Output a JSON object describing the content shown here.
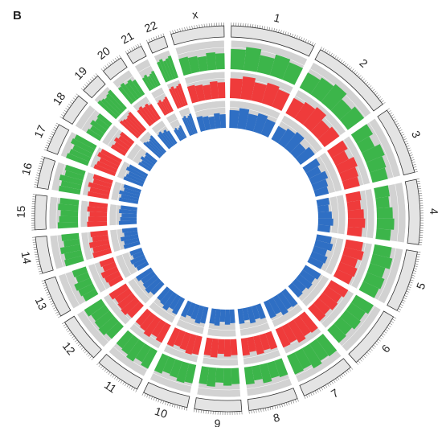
{
  "chart_data": {
    "type": "circular-histogram",
    "panel_label": "B",
    "categories": [
      "1",
      "2",
      "3",
      "4",
      "5",
      "6",
      "7",
      "8",
      "9",
      "10",
      "11",
      "12",
      "13",
      "14",
      "15",
      "16",
      "17",
      "18",
      "19",
      "20",
      "21",
      "22",
      "x"
    ],
    "lengths": [
      249,
      242,
      198,
      190,
      181,
      171,
      159,
      145,
      138,
      134,
      135,
      133,
      114,
      107,
      102,
      90,
      83,
      80,
      59,
      64,
      47,
      51,
      156
    ],
    "ylim": [
      0,
      1
    ],
    "yticks": [
      0,
      0.25,
      0.5,
      0.75,
      1
    ],
    "grid": true,
    "series": [
      {
        "color": "#3cb54a",
        "values": [
          [
            0.7,
            0.8,
            0.6,
            0.75,
            0.65
          ],
          [
            0.6,
            0.7,
            0.8,
            0.55,
            0.7
          ],
          [
            0.65,
            0.5,
            0.7,
            0.6,
            0.55
          ],
          [
            0.5,
            0.45,
            0.55,
            0.6,
            0.5
          ],
          [
            0.6,
            0.7,
            0.55,
            0.65,
            0.6
          ],
          [
            0.7,
            0.6,
            0.65,
            0.55,
            0.6
          ],
          [
            0.75,
            0.7,
            0.8,
            0.65,
            0.7
          ],
          [
            0.6,
            0.55,
            0.65,
            0.5,
            0.6
          ],
          [
            0.55,
            0.6,
            0.5,
            0.65,
            0.6
          ],
          [
            0.65,
            0.7,
            0.6,
            0.55,
            0.65
          ],
          [
            0.7,
            0.6,
            0.75,
            0.65,
            0.6
          ],
          [
            0.6,
            0.7,
            0.65,
            0.6,
            0.7
          ],
          [
            0.5,
            0.55,
            0.6,
            0.45,
            0.5
          ],
          [
            0.65,
            0.6,
            0.7,
            0.55,
            0.6
          ],
          [
            0.7,
            0.65,
            0.6,
            0.7,
            0.65
          ],
          [
            0.75,
            0.7,
            0.8,
            0.65,
            0.7
          ],
          [
            0.8,
            0.75,
            0.7,
            0.85,
            0.8
          ],
          [
            0.55,
            0.5,
            0.6,
            0.5,
            0.55
          ],
          [
            0.85,
            0.8,
            0.75,
            0.8,
            0.85
          ],
          [
            0.7,
            0.75,
            0.65,
            0.7,
            0.6
          ],
          [
            0.5,
            0.55,
            0.45,
            0.5,
            0.55
          ],
          [
            0.75,
            0.8,
            0.7,
            0.75,
            0.8
          ],
          [
            0.6,
            0.55,
            0.5,
            0.6,
            0.55
          ]
        ]
      },
      {
        "color": "#ef3b3b",
        "values": [
          [
            0.75,
            0.85,
            0.7,
            0.8,
            0.7
          ],
          [
            0.65,
            0.75,
            0.85,
            0.6,
            0.7
          ],
          [
            0.7,
            0.55,
            0.75,
            0.65,
            0.6
          ],
          [
            0.55,
            0.5,
            0.6,
            0.65,
            0.55
          ],
          [
            0.65,
            0.75,
            0.6,
            0.7,
            0.65
          ],
          [
            0.75,
            0.65,
            0.7,
            0.6,
            0.65
          ],
          [
            0.8,
            0.75,
            0.85,
            0.7,
            0.75
          ],
          [
            0.65,
            0.6,
            0.7,
            0.55,
            0.65
          ],
          [
            0.6,
            0.65,
            0.55,
            0.7,
            0.65
          ],
          [
            0.7,
            0.75,
            0.65,
            0.6,
            0.7
          ],
          [
            0.75,
            0.65,
            0.8,
            0.7,
            0.65
          ],
          [
            0.65,
            0.75,
            0.7,
            0.65,
            0.75
          ],
          [
            0.55,
            0.6,
            0.65,
            0.5,
            0.55
          ],
          [
            0.7,
            0.65,
            0.75,
            0.6,
            0.65
          ],
          [
            0.75,
            0.7,
            0.65,
            0.75,
            0.7
          ],
          [
            0.8,
            0.75,
            0.85,
            0.7,
            0.75
          ],
          [
            0.85,
            0.8,
            0.75,
            0.9,
            0.85
          ],
          [
            0.6,
            0.55,
            0.65,
            0.55,
            0.6
          ],
          [
            0.9,
            0.85,
            0.8,
            0.85,
            0.9
          ],
          [
            0.75,
            0.8,
            0.7,
            0.75,
            0.65
          ],
          [
            0.55,
            0.6,
            0.5,
            0.55,
            0.6
          ],
          [
            0.8,
            0.85,
            0.75,
            0.8,
            0.85
          ],
          [
            0.65,
            0.6,
            0.55,
            0.65,
            0.6
          ]
        ]
      },
      {
        "color": "#2f6fc4",
        "values": [
          [
            0.65,
            0.75,
            0.6,
            0.7,
            0.6
          ],
          [
            0.55,
            0.65,
            0.75,
            0.5,
            0.65
          ],
          [
            0.6,
            0.5,
            0.65,
            0.55,
            0.5
          ],
          [
            0.45,
            0.4,
            0.5,
            0.55,
            0.45
          ],
          [
            0.55,
            0.65,
            0.5,
            0.6,
            0.55
          ],
          [
            0.65,
            0.55,
            0.6,
            0.5,
            0.55
          ],
          [
            0.7,
            0.65,
            0.75,
            0.6,
            0.65
          ],
          [
            0.55,
            0.5,
            0.6,
            0.45,
            0.55
          ],
          [
            0.5,
            0.55,
            0.45,
            0.6,
            0.55
          ],
          [
            0.6,
            0.65,
            0.55,
            0.5,
            0.6
          ],
          [
            0.65,
            0.55,
            0.7,
            0.6,
            0.55
          ],
          [
            0.55,
            0.65,
            0.6,
            0.55,
            0.65
          ],
          [
            0.45,
            0.5,
            0.55,
            0.4,
            0.45
          ],
          [
            0.6,
            0.55,
            0.65,
            0.5,
            0.55
          ],
          [
            0.65,
            0.6,
            0.55,
            0.65,
            0.6
          ],
          [
            0.7,
            0.65,
            0.75,
            0.6,
            0.65
          ],
          [
            0.75,
            0.7,
            0.65,
            0.8,
            0.75
          ],
          [
            0.5,
            0.45,
            0.55,
            0.45,
            0.5
          ],
          [
            0.8,
            0.75,
            0.7,
            0.75,
            0.8
          ],
          [
            0.65,
            0.7,
            0.6,
            0.65,
            0.55
          ],
          [
            0.45,
            0.5,
            0.4,
            0.45,
            0.5
          ],
          [
            0.7,
            0.75,
            0.65,
            0.7,
            0.75
          ],
          [
            0.55,
            0.5,
            0.45,
            0.55,
            0.5
          ]
        ]
      }
    ]
  }
}
